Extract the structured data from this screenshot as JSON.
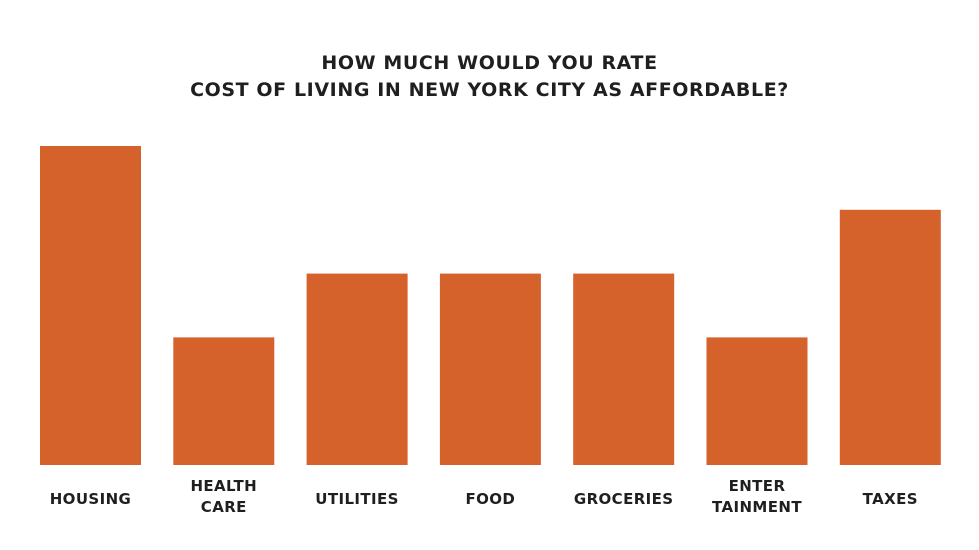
{
  "chart_data": {
    "type": "bar",
    "title_lines": [
      "HOW MUCH WOULD YOU RATE",
      "COST OF LIVING IN NEW YORK CITY AS AFFORDABLE?"
    ],
    "categories": [
      [
        "HOUSING"
      ],
      [
        "HEALTH",
        "CARE"
      ],
      [
        "UTILITIES"
      ],
      [
        "FOOD"
      ],
      [
        "GROCERIES"
      ],
      [
        "ENTER",
        "TAINMENT"
      ],
      [
        "TAXES"
      ]
    ],
    "values": [
      5,
      2,
      3,
      3,
      3,
      2,
      4
    ],
    "ylim": [
      0,
      5
    ],
    "grid": false,
    "legend": "none",
    "xlabel": "",
    "ylabel": "",
    "bar_color": "#D5622B",
    "text_color": "#1f1f1f",
    "background": "#ffffff"
  }
}
